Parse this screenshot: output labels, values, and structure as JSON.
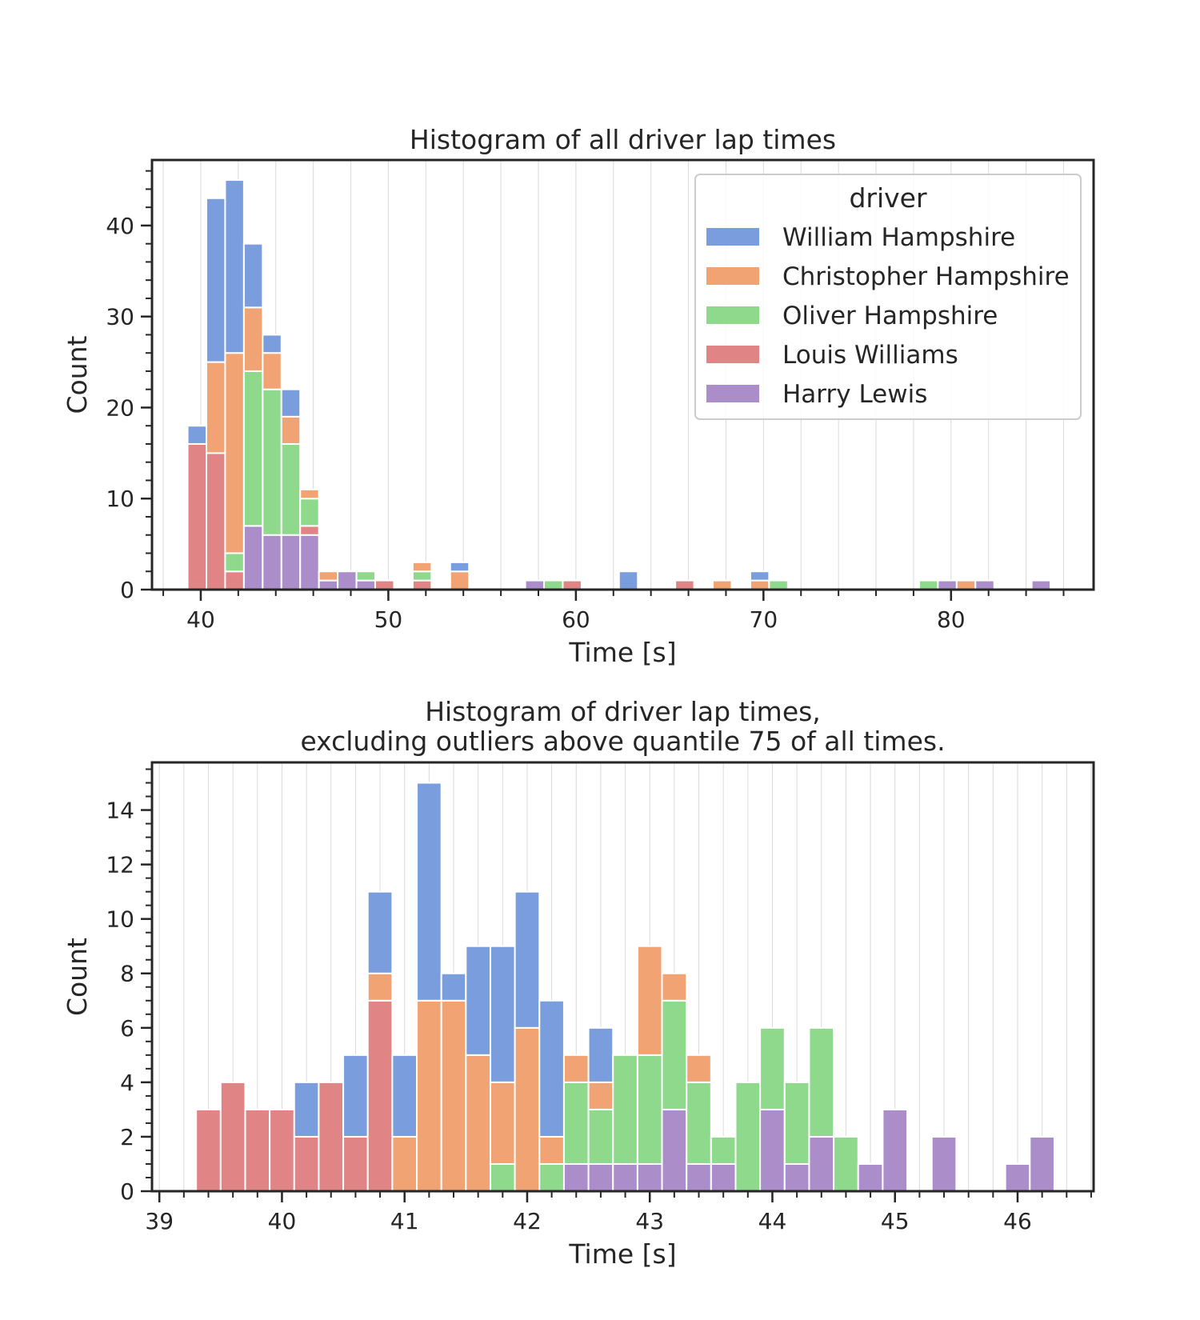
{
  "figure": {
    "width": 1500,
    "height": 1650
  },
  "palette": {
    "William Hampshire": "#7a9dde",
    "Christopher Hampshire": "#f2a373",
    "Oliver Hampshire": "#8ed98b",
    "Louis Williams": "#e08485",
    "Harry Lewis": "#ab8ec9"
  },
  "chart_data": [
    {
      "type": "bar",
      "stacked": true,
      "title": "Histogram of all driver lap times",
      "xlabel": "Time [s]",
      "ylabel": "Count",
      "xlim": [
        37.4,
        87.6
      ],
      "ylim": [
        0,
        47.2
      ],
      "xticks": [
        40,
        50,
        60,
        70,
        80
      ],
      "xtick_labels": [
        "40",
        "50",
        "60",
        "70",
        "80"
      ],
      "xminor_step": 2,
      "yticks": [
        0,
        10,
        20,
        30,
        40
      ],
      "ytick_labels": [
        "0",
        "10",
        "20",
        "30",
        "40"
      ],
      "yminor_step": 2,
      "grid": "x",
      "legend": {
        "title": "driver",
        "placement": "upper right",
        "entries": [
          "William Hampshire",
          "Christopher Hampshire",
          "Oliver Hampshire",
          "Louis Williams",
          "Harry Lewis"
        ]
      },
      "bin_width": 1.0,
      "bins": [
        {
          "x0": 39.3,
          "counts": {
            "Harry Lewis": 0,
            "Louis Williams": 16,
            "Oliver Hampshire": 0,
            "Christopher Hampshire": 0,
            "William Hampshire": 2
          }
        },
        {
          "x0": 40.3,
          "counts": {
            "Harry Lewis": 0,
            "Louis Williams": 15,
            "Oliver Hampshire": 0,
            "Christopher Hampshire": 10,
            "William Hampshire": 18
          }
        },
        {
          "x0": 41.3,
          "counts": {
            "Harry Lewis": 0,
            "Louis Williams": 2,
            "Oliver Hampshire": 2,
            "Christopher Hampshire": 22,
            "William Hampshire": 19
          }
        },
        {
          "x0": 42.3,
          "counts": {
            "Harry Lewis": 7,
            "Louis Williams": 0,
            "Oliver Hampshire": 17,
            "Christopher Hampshire": 7,
            "William Hampshire": 7
          }
        },
        {
          "x0": 43.3,
          "counts": {
            "Harry Lewis": 6,
            "Louis Williams": 0,
            "Oliver Hampshire": 16,
            "Christopher Hampshire": 4,
            "William Hampshire": 2
          }
        },
        {
          "x0": 44.3,
          "counts": {
            "Harry Lewis": 6,
            "Louis Williams": 0,
            "Oliver Hampshire": 10,
            "Christopher Hampshire": 3,
            "William Hampshire": 3
          }
        },
        {
          "x0": 45.3,
          "counts": {
            "Harry Lewis": 6,
            "Louis Williams": 1,
            "Oliver Hampshire": 3,
            "Christopher Hampshire": 1,
            "William Hampshire": 0
          }
        },
        {
          "x0": 46.3,
          "counts": {
            "Harry Lewis": 1,
            "Louis Williams": 0,
            "Oliver Hampshire": 0,
            "Christopher Hampshire": 1,
            "William Hampshire": 0
          }
        },
        {
          "x0": 47.3,
          "counts": {
            "Harry Lewis": 2,
            "Louis Williams": 0,
            "Oliver Hampshire": 0,
            "Christopher Hampshire": 0,
            "William Hampshire": 0
          }
        },
        {
          "x0": 48.3,
          "counts": {
            "Harry Lewis": 1,
            "Louis Williams": 0,
            "Oliver Hampshire": 1,
            "Christopher Hampshire": 0,
            "William Hampshire": 0
          }
        },
        {
          "x0": 49.3,
          "counts": {
            "Harry Lewis": 0,
            "Louis Williams": 1,
            "Oliver Hampshire": 0,
            "Christopher Hampshire": 0,
            "William Hampshire": 0
          }
        },
        {
          "x0": 51.3,
          "counts": {
            "Harry Lewis": 0,
            "Louis Williams": 1,
            "Oliver Hampshire": 1,
            "Christopher Hampshire": 1,
            "William Hampshire": 0
          }
        },
        {
          "x0": 53.3,
          "counts": {
            "Harry Lewis": 0,
            "Louis Williams": 0,
            "Oliver Hampshire": 0,
            "Christopher Hampshire": 2,
            "William Hampshire": 1
          }
        },
        {
          "x0": 57.3,
          "counts": {
            "Harry Lewis": 1,
            "Louis Williams": 0,
            "Oliver Hampshire": 0,
            "Christopher Hampshire": 0,
            "William Hampshire": 0
          }
        },
        {
          "x0": 58.3,
          "counts": {
            "Harry Lewis": 0,
            "Louis Williams": 0,
            "Oliver Hampshire": 1,
            "Christopher Hampshire": 0,
            "William Hampshire": 0
          }
        },
        {
          "x0": 59.3,
          "counts": {
            "Harry Lewis": 0,
            "Louis Williams": 1,
            "Oliver Hampshire": 0,
            "Christopher Hampshire": 0,
            "William Hampshire": 0
          }
        },
        {
          "x0": 62.3,
          "counts": {
            "Harry Lewis": 0,
            "Louis Williams": 0,
            "Oliver Hampshire": 0,
            "Christopher Hampshire": 0,
            "William Hampshire": 2
          }
        },
        {
          "x0": 65.3,
          "counts": {
            "Harry Lewis": 0,
            "Louis Williams": 1,
            "Oliver Hampshire": 0,
            "Christopher Hampshire": 0,
            "William Hampshire": 0
          }
        },
        {
          "x0": 67.3,
          "counts": {
            "Harry Lewis": 0,
            "Louis Williams": 0,
            "Oliver Hampshire": 0,
            "Christopher Hampshire": 1,
            "William Hampshire": 0
          }
        },
        {
          "x0": 69.3,
          "counts": {
            "Harry Lewis": 0,
            "Louis Williams": 0,
            "Oliver Hampshire": 0,
            "Christopher Hampshire": 1,
            "William Hampshire": 1
          }
        },
        {
          "x0": 70.3,
          "counts": {
            "Harry Lewis": 0,
            "Louis Williams": 0,
            "Oliver Hampshire": 1,
            "Christopher Hampshire": 0,
            "William Hampshire": 0
          }
        },
        {
          "x0": 78.3,
          "counts": {
            "Harry Lewis": 0,
            "Louis Williams": 0,
            "Oliver Hampshire": 1,
            "Christopher Hampshire": 0,
            "William Hampshire": 0
          }
        },
        {
          "x0": 79.3,
          "counts": {
            "Harry Lewis": 1,
            "Louis Williams": 0,
            "Oliver Hampshire": 0,
            "Christopher Hampshire": 0,
            "William Hampshire": 0
          }
        },
        {
          "x0": 80.3,
          "counts": {
            "Harry Lewis": 0,
            "Louis Williams": 0,
            "Oliver Hampshire": 0,
            "Christopher Hampshire": 1,
            "William Hampshire": 0
          }
        },
        {
          "x0": 81.3,
          "counts": {
            "Harry Lewis": 1,
            "Louis Williams": 0,
            "Oliver Hampshire": 0,
            "Christopher Hampshire": 0,
            "William Hampshire": 0
          }
        },
        {
          "x0": 84.3,
          "counts": {
            "Harry Lewis": 1,
            "Louis Williams": 0,
            "Oliver Hampshire": 0,
            "Christopher Hampshire": 0,
            "William Hampshire": 0
          }
        }
      ]
    },
    {
      "type": "bar",
      "stacked": true,
      "title": "Histogram of driver lap times,\nexcluding outliers above quantile 75 of all times.",
      "xlabel": "Time [s]",
      "ylabel": "Count",
      "xlim": [
        38.94,
        46.62
      ],
      "ylim": [
        0,
        15.75
      ],
      "xticks": [
        39,
        40,
        41,
        42,
        43,
        44,
        45,
        46
      ],
      "xtick_labels": [
        "39",
        "40",
        "41",
        "42",
        "43",
        "44",
        "45",
        "46"
      ],
      "xminor_step": 0.2,
      "yticks": [
        0,
        2,
        4,
        6,
        8,
        10,
        12,
        14
      ],
      "ytick_labels": [
        "0",
        "2",
        "4",
        "6",
        "8",
        "10",
        "12",
        "14"
      ],
      "yminor_step": 0.5,
      "grid": "x",
      "bin_width": 0.2,
      "bins": [
        {
          "x0": 39.3,
          "counts": {
            "Harry Lewis": 0,
            "Louis Williams": 3,
            "Oliver Hampshire": 0,
            "Christopher Hampshire": 0,
            "William Hampshire": 0
          }
        },
        {
          "x0": 39.5,
          "counts": {
            "Harry Lewis": 0,
            "Louis Williams": 4,
            "Oliver Hampshire": 0,
            "Christopher Hampshire": 0,
            "William Hampshire": 0
          }
        },
        {
          "x0": 39.7,
          "counts": {
            "Harry Lewis": 0,
            "Louis Williams": 3,
            "Oliver Hampshire": 0,
            "Christopher Hampshire": 0,
            "William Hampshire": 0
          }
        },
        {
          "x0": 39.9,
          "counts": {
            "Harry Lewis": 0,
            "Louis Williams": 3,
            "Oliver Hampshire": 0,
            "Christopher Hampshire": 0,
            "William Hampshire": 0
          }
        },
        {
          "x0": 40.1,
          "counts": {
            "Harry Lewis": 0,
            "Louis Williams": 2,
            "Oliver Hampshire": 0,
            "Christopher Hampshire": 0,
            "William Hampshire": 2
          }
        },
        {
          "x0": 40.3,
          "counts": {
            "Harry Lewis": 0,
            "Louis Williams": 4,
            "Oliver Hampshire": 0,
            "Christopher Hampshire": 0,
            "William Hampshire": 0
          }
        },
        {
          "x0": 40.5,
          "counts": {
            "Harry Lewis": 0,
            "Louis Williams": 2,
            "Oliver Hampshire": 0,
            "Christopher Hampshire": 0,
            "William Hampshire": 3
          }
        },
        {
          "x0": 40.7,
          "counts": {
            "Harry Lewis": 0,
            "Louis Williams": 7,
            "Oliver Hampshire": 0,
            "Christopher Hampshire": 1,
            "William Hampshire": 3
          }
        },
        {
          "x0": 40.9,
          "counts": {
            "Harry Lewis": 0,
            "Louis Williams": 0,
            "Oliver Hampshire": 0,
            "Christopher Hampshire": 2,
            "William Hampshire": 3
          }
        },
        {
          "x0": 41.1,
          "counts": {
            "Harry Lewis": 0,
            "Louis Williams": 0,
            "Oliver Hampshire": 0,
            "Christopher Hampshire": 7,
            "William Hampshire": 8
          }
        },
        {
          "x0": 41.3,
          "counts": {
            "Harry Lewis": 0,
            "Louis Williams": 0,
            "Oliver Hampshire": 0,
            "Christopher Hampshire": 7,
            "William Hampshire": 1
          }
        },
        {
          "x0": 41.5,
          "counts": {
            "Harry Lewis": 0,
            "Louis Williams": 0,
            "Oliver Hampshire": 0,
            "Christopher Hampshire": 5,
            "William Hampshire": 4
          }
        },
        {
          "x0": 41.7,
          "counts": {
            "Harry Lewis": 0,
            "Louis Williams": 0,
            "Oliver Hampshire": 1,
            "Christopher Hampshire": 3,
            "William Hampshire": 5
          }
        },
        {
          "x0": 41.9,
          "counts": {
            "Harry Lewis": 0,
            "Louis Williams": 0,
            "Oliver Hampshire": 0,
            "Christopher Hampshire": 6,
            "William Hampshire": 5
          }
        },
        {
          "x0": 42.1,
          "counts": {
            "Harry Lewis": 0,
            "Louis Williams": 0,
            "Oliver Hampshire": 1,
            "Christopher Hampshire": 1,
            "William Hampshire": 5
          }
        },
        {
          "x0": 42.3,
          "counts": {
            "Harry Lewis": 1,
            "Louis Williams": 0,
            "Oliver Hampshire": 3,
            "Christopher Hampshire": 1,
            "William Hampshire": 0
          }
        },
        {
          "x0": 42.5,
          "counts": {
            "Harry Lewis": 1,
            "Louis Williams": 0,
            "Oliver Hampshire": 2,
            "Christopher Hampshire": 1,
            "William Hampshire": 2
          }
        },
        {
          "x0": 42.7,
          "counts": {
            "Harry Lewis": 1,
            "Louis Williams": 0,
            "Oliver Hampshire": 4,
            "Christopher Hampshire": 0,
            "William Hampshire": 0
          }
        },
        {
          "x0": 42.9,
          "counts": {
            "Harry Lewis": 1,
            "Louis Williams": 0,
            "Oliver Hampshire": 4,
            "Christopher Hampshire": 4,
            "William Hampshire": 0
          }
        },
        {
          "x0": 43.1,
          "counts": {
            "Harry Lewis": 3,
            "Louis Williams": 0,
            "Oliver Hampshire": 4,
            "Christopher Hampshire": 1,
            "William Hampshire": 0
          }
        },
        {
          "x0": 43.3,
          "counts": {
            "Harry Lewis": 1,
            "Louis Williams": 0,
            "Oliver Hampshire": 3,
            "Christopher Hampshire": 1,
            "William Hampshire": 0
          }
        },
        {
          "x0": 43.5,
          "counts": {
            "Harry Lewis": 1,
            "Louis Williams": 0,
            "Oliver Hampshire": 1,
            "Christopher Hampshire": 0,
            "William Hampshire": 0
          }
        },
        {
          "x0": 43.7,
          "counts": {
            "Harry Lewis": 0,
            "Louis Williams": 0,
            "Oliver Hampshire": 4,
            "Christopher Hampshire": 0,
            "William Hampshire": 0
          }
        },
        {
          "x0": 43.9,
          "counts": {
            "Harry Lewis": 3,
            "Louis Williams": 0,
            "Oliver Hampshire": 3,
            "Christopher Hampshire": 0,
            "William Hampshire": 0
          }
        },
        {
          "x0": 44.1,
          "counts": {
            "Harry Lewis": 1,
            "Louis Williams": 0,
            "Oliver Hampshire": 3,
            "Christopher Hampshire": 0,
            "William Hampshire": 0
          }
        },
        {
          "x0": 44.3,
          "counts": {
            "Harry Lewis": 2,
            "Louis Williams": 0,
            "Oliver Hampshire": 4,
            "Christopher Hampshire": 0,
            "William Hampshire": 0
          }
        },
        {
          "x0": 44.5,
          "counts": {
            "Harry Lewis": 0,
            "Louis Williams": 0,
            "Oliver Hampshire": 2,
            "Christopher Hampshire": 0,
            "William Hampshire": 0
          }
        },
        {
          "x0": 44.7,
          "counts": {
            "Harry Lewis": 1,
            "Louis Williams": 0,
            "Oliver Hampshire": 0,
            "Christopher Hampshire": 0,
            "William Hampshire": 0
          }
        },
        {
          "x0": 44.9,
          "counts": {
            "Harry Lewis": 3,
            "Louis Williams": 0,
            "Oliver Hampshire": 0,
            "Christopher Hampshire": 0,
            "William Hampshire": 0
          }
        },
        {
          "x0": 45.3,
          "counts": {
            "Harry Lewis": 2,
            "Louis Williams": 0,
            "Oliver Hampshire": 0,
            "Christopher Hampshire": 0,
            "William Hampshire": 0
          }
        },
        {
          "x0": 45.9,
          "counts": {
            "Harry Lewis": 1,
            "Louis Williams": 0,
            "Oliver Hampshire": 0,
            "Christopher Hampshire": 0,
            "William Hampshire": 0
          }
        },
        {
          "x0": 46.1,
          "counts": {
            "Harry Lewis": 2,
            "Louis Williams": 0,
            "Oliver Hampshire": 0,
            "Christopher Hampshire": 0,
            "William Hampshire": 0
          }
        }
      ]
    }
  ]
}
